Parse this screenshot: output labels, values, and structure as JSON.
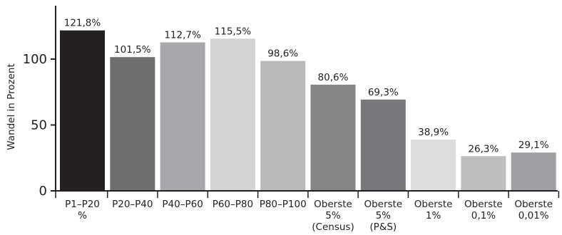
{
  "chart_data": {
    "type": "bar",
    "ylabel": "Wandel in Prozent",
    "ylim": [
      0,
      140
    ],
    "yticks": [
      0,
      50,
      100
    ],
    "grid": false,
    "categories": [
      [
        "P1–P20",
        "%"
      ],
      [
        "P20–P40"
      ],
      [
        "P40–P60"
      ],
      [
        "P60–P80"
      ],
      [
        "P80–P100"
      ],
      [
        "Oberste",
        "5%",
        "(Census)"
      ],
      [
        "Oberste",
        "5%",
        "(P&S)"
      ],
      [
        "Oberste",
        "1%"
      ],
      [
        "Oberste",
        "0,1%"
      ],
      [
        "Oberste",
        "0,01%"
      ]
    ],
    "values": [
      121.8,
      101.5,
      112.7,
      115.5,
      98.6,
      80.6,
      69.3,
      38.9,
      26.3,
      29.1
    ],
    "value_labels": [
      "121,8%",
      "101,5%",
      "112,7%",
      "115,5%",
      "98,6%",
      "80,6%",
      "69,3%",
      "38,9%",
      "26,3%",
      "29,1%"
    ],
    "colors": [
      "#231f20",
      "#6d6e70",
      "#a6a8ab",
      "#d1d3d4",
      "#b9babc",
      "#858688",
      "#77787b",
      "#dcdddf",
      "#bcbec0",
      "#9d9fa2"
    ]
  }
}
